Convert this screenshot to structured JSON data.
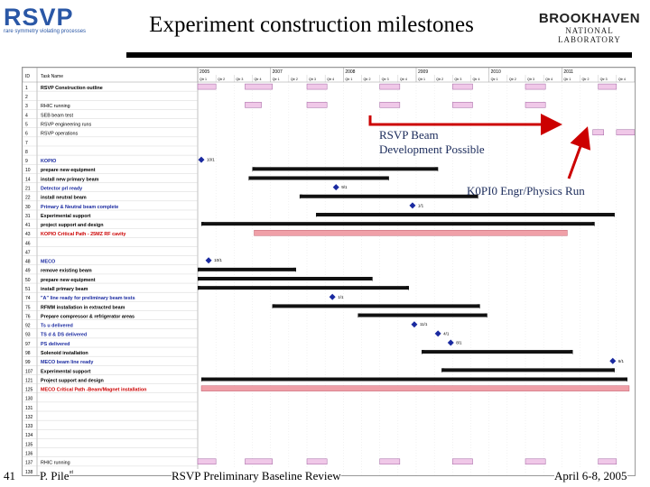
{
  "header": {
    "logo_main": "RSVP",
    "logo_sub": "rare symmetry violating processes",
    "title": "Experiment construction milestones",
    "bnl_top": "BROOKHAVEN",
    "bnl_bottom": "NATIONAL LABORATORY"
  },
  "gantt": {
    "col_id": "ID",
    "col_task": "Task Name",
    "years": [
      "2005",
      "2007",
      "2008",
      "2009",
      "2010",
      "2011"
    ],
    "quarters": [
      "Qtr 1",
      "Qtr 2",
      "Qtr 3",
      "Qtr 4"
    ],
    "rows": [
      {
        "id": "1",
        "task": "RSVP Construction outline",
        "style": "bold"
      },
      {
        "id": "2",
        "task": "",
        "style": ""
      },
      {
        "id": "3",
        "task": "RHIC running",
        "style": ""
      },
      {
        "id": "4",
        "task": "SEB beam test",
        "style": ""
      },
      {
        "id": "5",
        "task": "RSVP engineering runs",
        "style": ""
      },
      {
        "id": "6",
        "task": "RSVP operations",
        "style": ""
      },
      {
        "id": "7",
        "task": "",
        "style": ""
      },
      {
        "id": "8",
        "task": "",
        "style": ""
      },
      {
        "id": "9",
        "task": "KOPIO",
        "style": "blue"
      },
      {
        "id": "10",
        "task": "prepare new equipment",
        "style": "bold"
      },
      {
        "id": "14",
        "task": "install new primary beam",
        "style": "bold"
      },
      {
        "id": "21",
        "task": "Detector prl ready",
        "style": "blue"
      },
      {
        "id": "22",
        "task": "install neutral beam",
        "style": "bold"
      },
      {
        "id": "30",
        "task": "Primary & Neutral beam complete",
        "style": "blue"
      },
      {
        "id": "31",
        "task": "Experimental support",
        "style": "bold"
      },
      {
        "id": "41",
        "task": "project support and design",
        "style": "bold"
      },
      {
        "id": "43",
        "task": "KOPIO Critical Path - 25MZ RF cavity",
        "style": "red"
      },
      {
        "id": "46",
        "task": "",
        "style": ""
      },
      {
        "id": "47",
        "task": "",
        "style": ""
      },
      {
        "id": "48",
        "task": "MECO",
        "style": "blue"
      },
      {
        "id": "49",
        "task": "remove existing beam",
        "style": "bold"
      },
      {
        "id": "50",
        "task": "prepare new equipment",
        "style": "bold"
      },
      {
        "id": "51",
        "task": "install primary beam",
        "style": "bold"
      },
      {
        "id": "74",
        "task": "\"A\" line ready for preliminary beam tests",
        "style": "blue"
      },
      {
        "id": "75",
        "task": "RFMM installation in extracted beam",
        "style": "bold"
      },
      {
        "id": "76",
        "task": "Prepare compressor & refrigerator areas",
        "style": "bold"
      },
      {
        "id": "92",
        "task": "Ts u delivered",
        "style": "blue"
      },
      {
        "id": "93",
        "task": "TS d & DS delivered",
        "style": "blue"
      },
      {
        "id": "97",
        "task": "PS delivered",
        "style": "blue"
      },
      {
        "id": "98",
        "task": "Solenoid installation",
        "style": "bold"
      },
      {
        "id": "99",
        "task": "MECO beam line ready",
        "style": "blue"
      },
      {
        "id": "107",
        "task": "Experimental support",
        "style": "bold"
      },
      {
        "id": "121",
        "task": "Project support and design",
        "style": "bold"
      },
      {
        "id": "125",
        "task": "MECO Critical Path -Beam/Magnet installation",
        "style": "red"
      },
      {
        "id": "130",
        "task": "",
        "style": ""
      },
      {
        "id": "131",
        "task": "",
        "style": ""
      },
      {
        "id": "132",
        "task": "",
        "style": ""
      },
      {
        "id": "133",
        "task": "",
        "style": ""
      },
      {
        "id": "134",
        "task": "",
        "style": ""
      },
      {
        "id": "135",
        "task": "",
        "style": ""
      },
      {
        "id": "136",
        "task": "",
        "style": ""
      },
      {
        "id": "137",
        "task": "RHIC running",
        "style": ""
      },
      {
        "id": "138",
        "task": "SEB beam test",
        "style": ""
      }
    ],
    "milestones": [
      {
        "row": 8,
        "label": "10/1"
      },
      {
        "row": 11,
        "label": "9/1"
      },
      {
        "row": 13,
        "label": "1/1"
      },
      {
        "row": 19,
        "label": "10/1"
      },
      {
        "row": 23,
        "label": "1/1"
      },
      {
        "row": 26,
        "label": "11/1"
      },
      {
        "row": 27,
        "label": "4/1"
      },
      {
        "row": 28,
        "label": "8/1"
      },
      {
        "row": 30,
        "label": "6/1"
      }
    ]
  },
  "callouts": {
    "rsvp_line1": "RSVP Beam",
    "rsvp_line2": "Development Possible",
    "kopi": "K0PI0 Engr/Physics Run"
  },
  "footer": {
    "slide_number": "41",
    "author": "P. Pile",
    "event": "RSVP Preliminary Baseline Review",
    "date": "April 6-8, 2005"
  },
  "colors": {
    "accent": "#2a57a6",
    "bar": "#111111",
    "pink": "#f0c8e8",
    "critical": "#f0a0a8",
    "arrow": "#cc0000"
  }
}
